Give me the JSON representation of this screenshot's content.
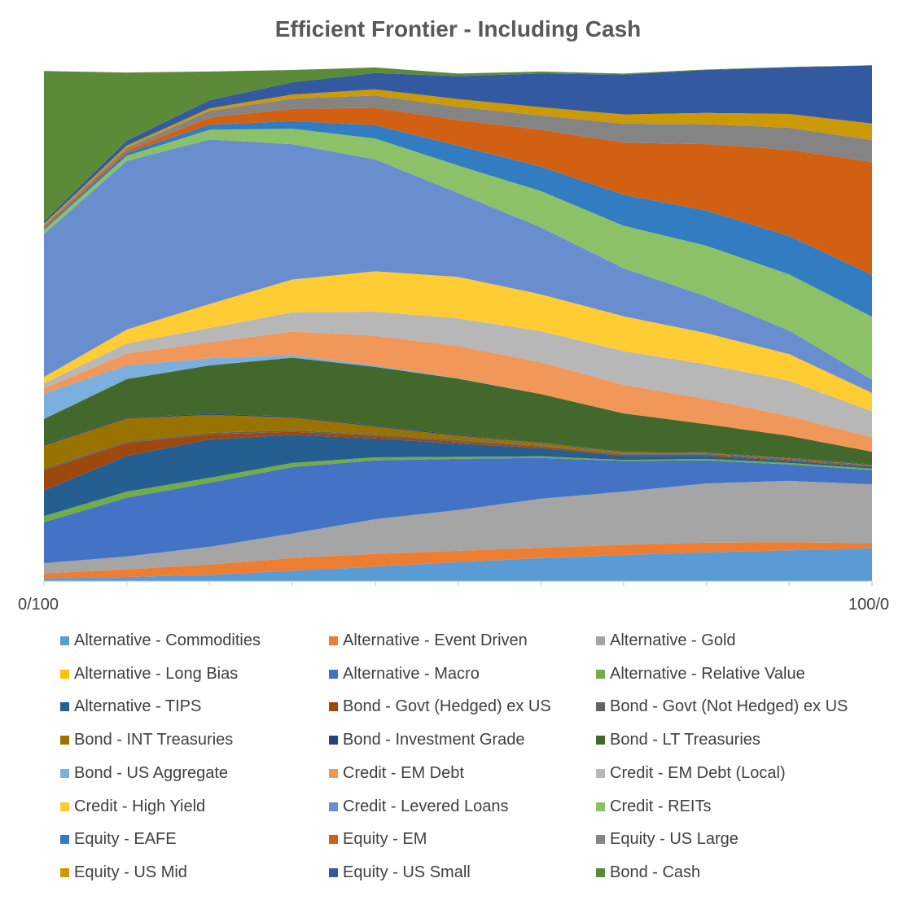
{
  "chart_data": {
    "type": "area",
    "title": "Efficient Frontier - Including Cash",
    "xlabel": "",
    "ylabel": "",
    "x": [
      0,
      1,
      2,
      3,
      4,
      5,
      6,
      7,
      8,
      9,
      10
    ],
    "x_tick_labels": [
      "0/100",
      "100/0"
    ],
    "ylim": [
      0,
      100
    ],
    "stacked": true,
    "legend_position": "bottom",
    "series": [
      {
        "name": "Alternative - Commodities",
        "color": "#5b9bd5",
        "values": [
          0.5,
          0.8,
          1.2,
          2.0,
          2.8,
          3.7,
          4.5,
          5.1,
          5.6,
          6.0,
          6.4
        ]
      },
      {
        "name": "Alternative - Event Driven",
        "color": "#ed7d31",
        "values": [
          1.0,
          1.5,
          2.0,
          2.5,
          2.5,
          2.2,
          2.0,
          2.0,
          1.9,
          1.6,
          1.0
        ]
      },
      {
        "name": "Alternative - Gold",
        "color": "#a5a5a5",
        "values": [
          2.0,
          2.5,
          3.5,
          4.8,
          6.8,
          8.0,
          9.6,
          10.4,
          11.6,
          12.0,
          11.5
        ]
      },
      {
        "name": "Alternative - Long Bias",
        "color": "#ffc000",
        "values": [
          0,
          0,
          0,
          0,
          0,
          0,
          0,
          0,
          0,
          0,
          0
        ]
      },
      {
        "name": "Alternative - Macro",
        "color": "#4472c4",
        "values": [
          8.0,
          11.5,
          12.5,
          13.0,
          11.5,
          10.0,
          8.0,
          6.0,
          4.5,
          3.2,
          2.8
        ]
      },
      {
        "name": "Alternative - Relative Value",
        "color": "#70ad47",
        "values": [
          1.2,
          1.2,
          1.0,
          0.8,
          0.6,
          0.4,
          0.3,
          0.2,
          0.3,
          0.3,
          0.3
        ]
      },
      {
        "name": "Alternative - TIPS",
        "color": "#255e91",
        "values": [
          5.0,
          7.0,
          7.5,
          5.5,
          3.7,
          2.6,
          1.6,
          0.8,
          0.6,
          0.4,
          0.3
        ]
      },
      {
        "name": "Bond - Govt (Hedged) ex US",
        "color": "#9e480e",
        "values": [
          4.0,
          2.5,
          1.0,
          0.6,
          0.5,
          0.4,
          0.3,
          0.2,
          0.2,
          0.2,
          0.1
        ]
      },
      {
        "name": "Bond - Govt (Not Hedged) ex US",
        "color": "#636363",
        "values": [
          0.3,
          0.3,
          0.3,
          0.3,
          0.3,
          0.3,
          0.2,
          0.2,
          0.2,
          0.2,
          0.2
        ]
      },
      {
        "name": "Bond - INT Treasuries",
        "color": "#997300",
        "values": [
          4.5,
          4.5,
          3.5,
          2.5,
          1.5,
          0.8,
          0.5,
          0.3,
          0.2,
          0.1,
          0.1
        ]
      },
      {
        "name": "Bond - Investment Grade",
        "color": "#264478",
        "values": [
          0.2,
          0.2,
          0.2,
          0.2,
          0.2,
          0.2,
          0.1,
          0.1,
          0.1,
          0.1,
          0.1
        ]
      },
      {
        "name": "Bond - LT Treasuries",
        "color": "#43682b",
        "values": [
          5.0,
          7.5,
          9.5,
          11.5,
          11.5,
          11.0,
          9.5,
          7.5,
          5.5,
          4.3,
          2.5
        ]
      },
      {
        "name": "Bond - US Aggregate",
        "color": "#7cafdd",
        "values": [
          5.0,
          2.7,
          1.4,
          0.5,
          0.3,
          0.1,
          0,
          0,
          0,
          0,
          0
        ]
      },
      {
        "name": "Credit - EM Debt",
        "color": "#f1975a",
        "values": [
          1.0,
          2.3,
          3.1,
          4.6,
          5.8,
          6.3,
          6.2,
          5.6,
          4.9,
          3.9,
          2.8
        ]
      },
      {
        "name": "Credit - EM Debt (Local)",
        "color": "#b7b7b7",
        "values": [
          1.0,
          2.0,
          2.8,
          3.8,
          4.7,
          5.4,
          6.1,
          6.6,
          6.8,
          6.9,
          5.1
        ]
      },
      {
        "name": "Credit - High Yield",
        "color": "#ffcd33",
        "values": [
          1.2,
          2.7,
          4.7,
          6.4,
          7.9,
          8.1,
          7.2,
          6.8,
          6.1,
          5.2,
          3.6
        ]
      },
      {
        "name": "Credit - Levered Loans",
        "color": "#698ed0",
        "values": [
          28.0,
          33.0,
          32.2,
          26.5,
          21.9,
          16.4,
          13.1,
          9.4,
          7.2,
          4.6,
          2.6
        ]
      },
      {
        "name": "Credit - REITs",
        "color": "#8cc168",
        "values": [
          0.8,
          1.0,
          1.9,
          3.0,
          4.1,
          5.4,
          7.1,
          8.3,
          9.9,
          11.0,
          12.3
        ]
      },
      {
        "name": "Equity - EAFE",
        "color": "#327dc2",
        "values": [
          0.3,
          0.6,
          1.0,
          1.5,
          2.6,
          3.9,
          4.8,
          6.1,
          6.9,
          7.5,
          8.2
        ]
      },
      {
        "name": "Equity - EM",
        "color": "#d26012",
        "values": [
          0.3,
          0.5,
          1.4,
          2.4,
          3.4,
          5.0,
          7.2,
          10.2,
          13.0,
          16.9,
          22.1
        ]
      },
      {
        "name": "Equity - US Large",
        "color": "#848484",
        "values": [
          0.3,
          0.5,
          1.3,
          2.0,
          2.4,
          2.6,
          2.8,
          3.7,
          3.9,
          4.3,
          4.3
        ]
      },
      {
        "name": "Equity - US Mid",
        "color": "#cc9a06",
        "values": [
          0.3,
          0.4,
          0.5,
          0.8,
          1.2,
          1.5,
          1.6,
          1.8,
          2.2,
          2.7,
          3.2
        ]
      },
      {
        "name": "Equity - US Small",
        "color": "#335aa1",
        "values": [
          0.5,
          1.0,
          1.6,
          2.4,
          3.2,
          4.5,
          6.6,
          7.8,
          8.4,
          9.1,
          11.4
        ]
      },
      {
        "name": "Bond - Cash",
        "color": "#5b8b38",
        "values": [
          29.4,
          13.3,
          5.6,
          2.4,
          1.1,
          0.5,
          0.4,
          0.2,
          0.1,
          0.1,
          0
        ]
      }
    ]
  }
}
